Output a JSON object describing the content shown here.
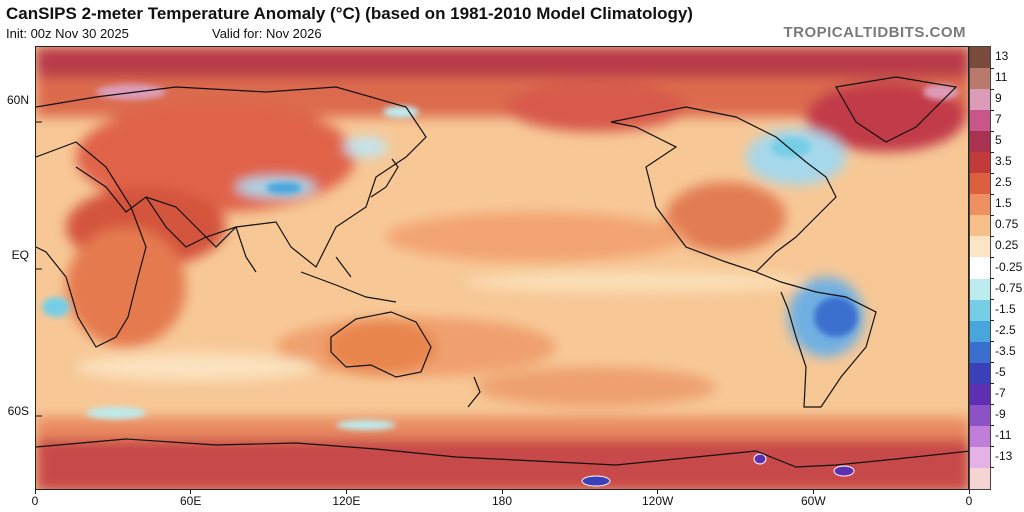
{
  "header": {
    "title": "CanSIPS 2-meter Temperature Anomaly (°C) (based on 1981-2010 Model Climatology)",
    "init": "Init: 00z Nov 30 2025",
    "valid": "Valid for: Nov 2026",
    "source": "TROPICALTIDBITS.COM"
  },
  "map": {
    "lat_labels": [
      {
        "text": "60N",
        "lat": 60
      },
      {
        "text": "EQ",
        "lat": 0
      },
      {
        "text": "60S",
        "lat": -60
      }
    ],
    "lon_labels": [
      {
        "text": "0",
        "lon": 0
      },
      {
        "text": "60E",
        "lon": 60
      },
      {
        "text": "120E",
        "lon": 120
      },
      {
        "text": "180",
        "lon": 180
      },
      {
        "text": "120W",
        "lon": 240
      },
      {
        "text": "60W",
        "lon": 300
      },
      {
        "text": "0",
        "lon": 360
      }
    ]
  },
  "colorbar": {
    "labels": [
      "13",
      "11",
      "9",
      "7",
      "5",
      "3.5",
      "2.5",
      "1.5",
      "0.75",
      "0.25",
      "-0.25",
      "-0.75",
      "-1.5",
      "-2.5",
      "-3.5",
      "-5",
      "-7",
      "-9",
      "-11",
      "-13"
    ],
    "colors": [
      "#7a4a3a",
      "#b97a6c",
      "#dc9cb8",
      "#c7568a",
      "#a8324f",
      "#c23a3a",
      "#dc6040",
      "#ee9060",
      "#f7c08a",
      "#fce4c4",
      "#ffffff",
      "#bdecef",
      "#76cde6",
      "#48a6dd",
      "#3a6fcf",
      "#3b40b8",
      "#5e2fb0",
      "#8c52c6",
      "#c07ed8",
      "#e4b2e6",
      "#f6d4d4"
    ]
  }
}
